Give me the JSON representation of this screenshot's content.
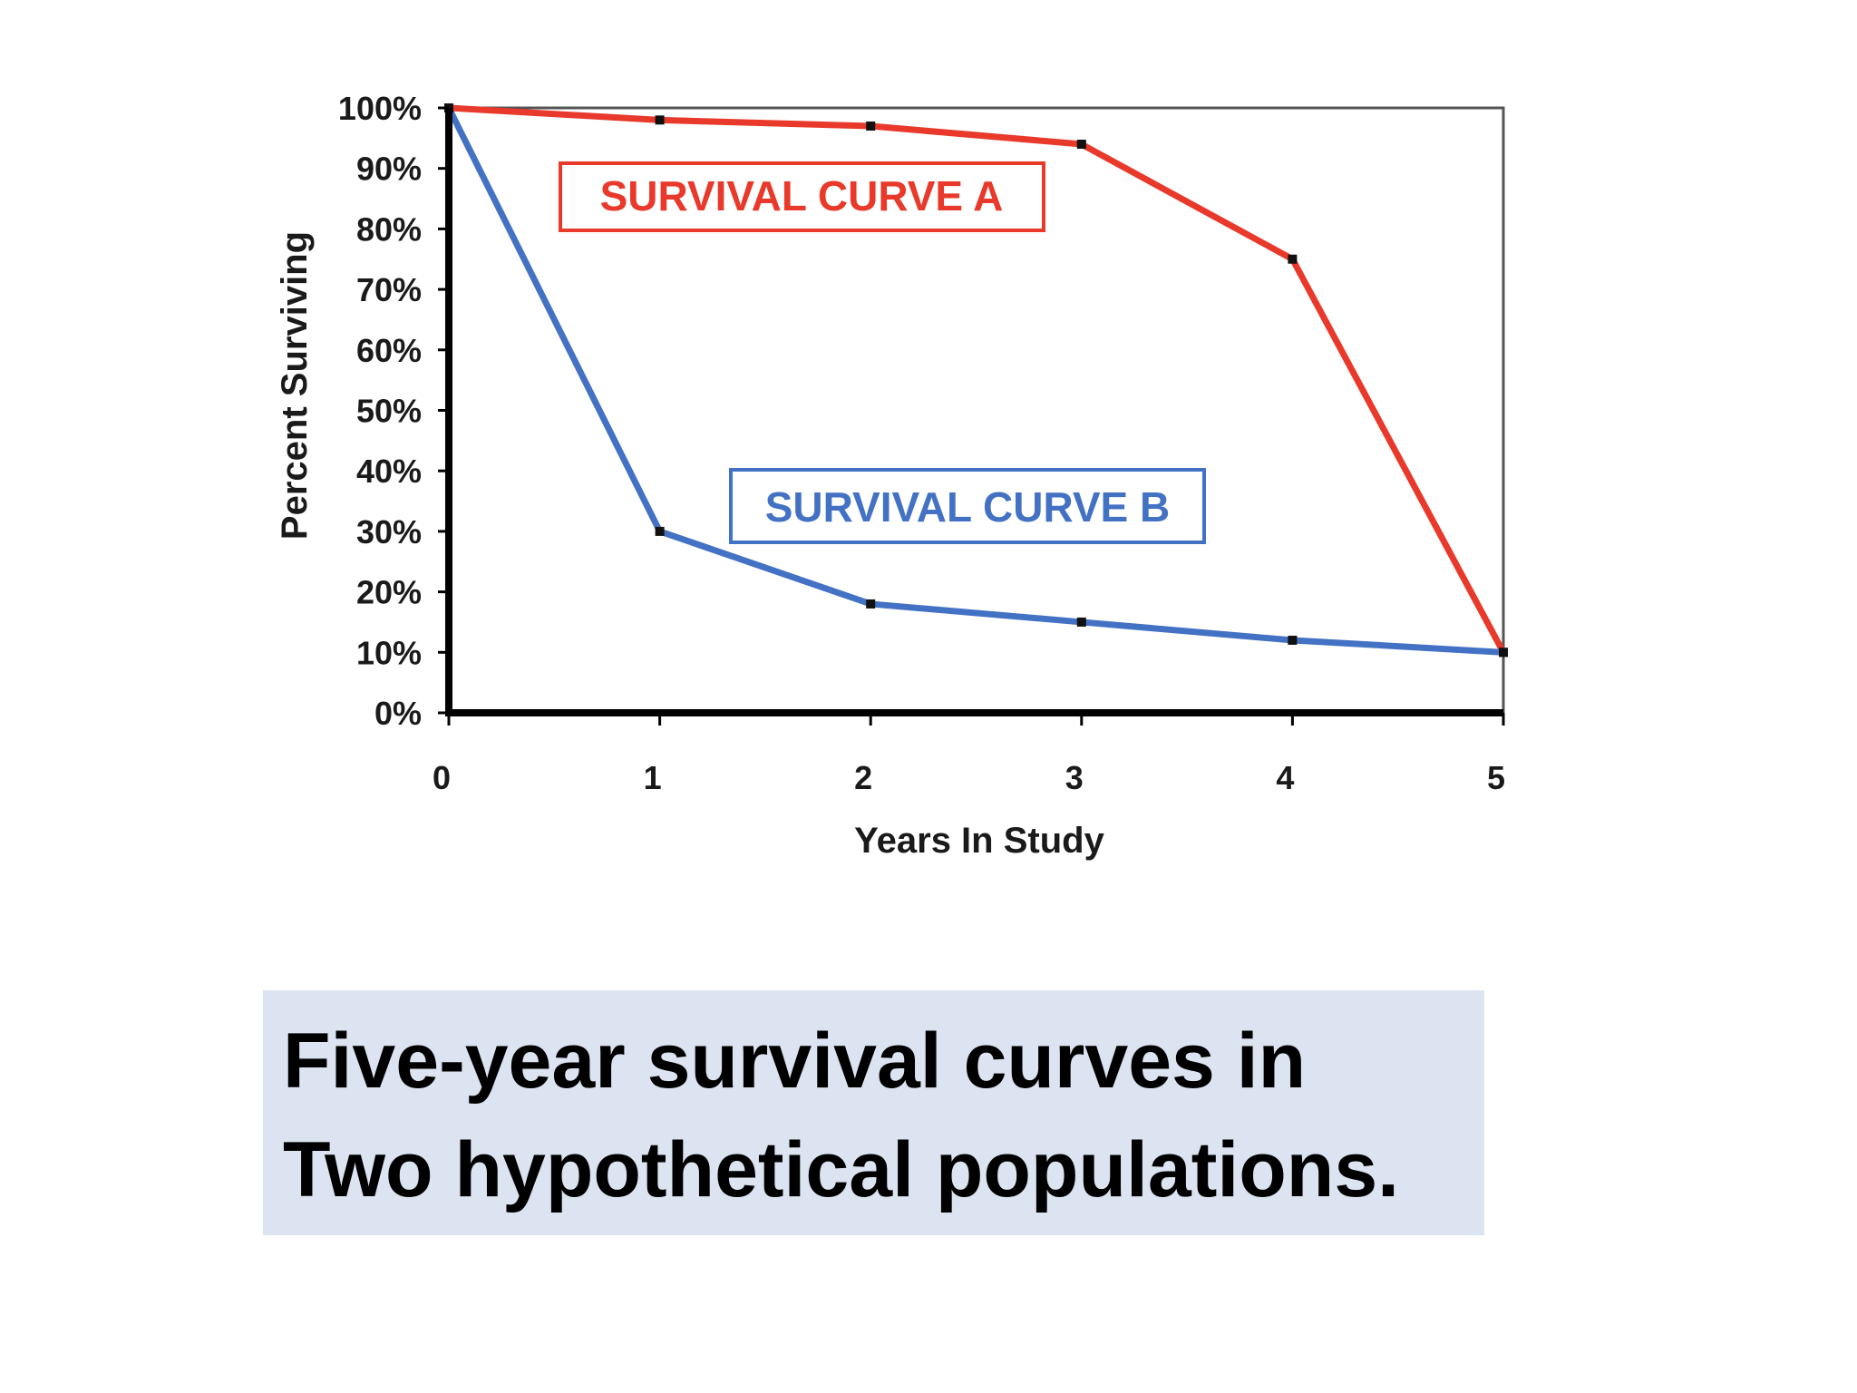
{
  "caption": {
    "line1": "Five-year survival curves in",
    "line2": "Two hypothetical populations."
  },
  "chart_data": {
    "type": "line",
    "title": "",
    "xlabel": "Years In Study",
    "ylabel": "Percent Surviving",
    "x": [
      0,
      1,
      2,
      3,
      4,
      5
    ],
    "x_tick_labels": [
      "0",
      "1",
      "2",
      "3",
      "4",
      "5"
    ],
    "y_tick_labels": [
      "0%",
      "10%",
      "20%",
      "30%",
      "40%",
      "50%",
      "60%",
      "70%",
      "80%",
      "90%",
      "100%"
    ],
    "xlim": [
      0,
      5
    ],
    "ylim": [
      0,
      100
    ],
    "grid": false,
    "series": [
      {
        "name": "SURVIVAL CURVE A",
        "color": "#e8392b",
        "values": [
          100,
          98,
          97,
          94,
          75,
          10
        ]
      },
      {
        "name": "SURVIVAL CURVE B",
        "color": "#4372c4",
        "values": [
          100,
          30,
          18,
          15,
          12,
          10
        ]
      }
    ]
  }
}
